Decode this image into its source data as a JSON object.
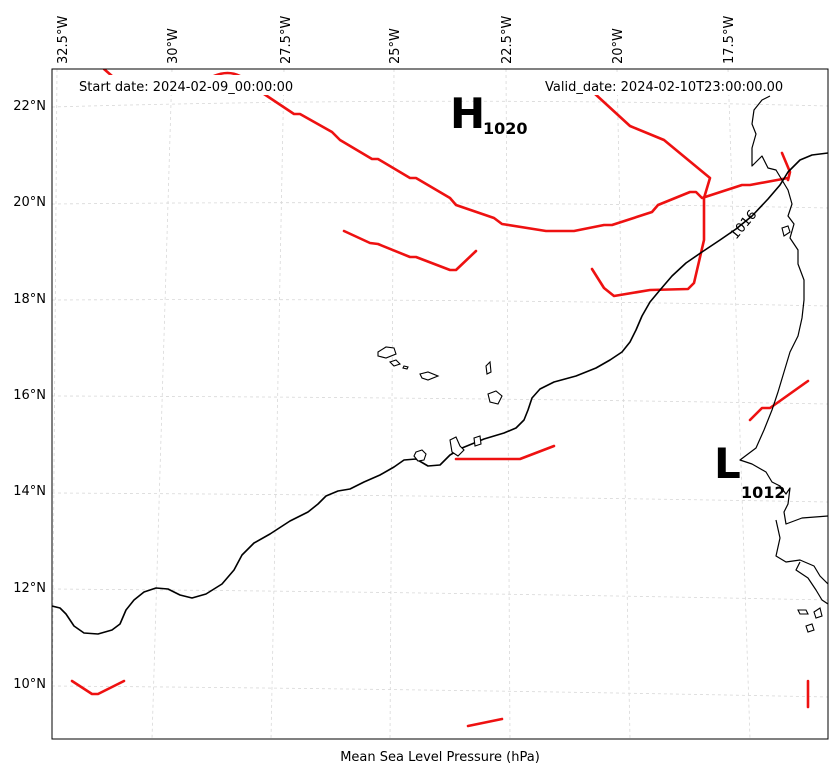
{
  "map": {
    "header_left": "Start date: 2024-02-09_00:00:00",
    "header_right": "Valid_date: 2024-02-10T23:00:00.00",
    "caption": "Mean Sea Level Pressure (hPa)",
    "lon_ticks": [
      "32.5°W",
      "30°W",
      "27.5°W",
      "25°W",
      "22.5°W",
      "20°W",
      "17.5°W"
    ],
    "lat_ticks": [
      "22°N",
      "20°N",
      "18°N",
      "16°N",
      "14°N",
      "12°N",
      "10°N"
    ],
    "high_letter": "H",
    "high_value": "1020",
    "low_letter": "L",
    "low_value": "1012",
    "isobar_label": "1016",
    "colors": {
      "red_isobar": "#ee1111",
      "black_isobar": "#000000",
      "gridline": "#d8d8d8"
    }
  }
}
